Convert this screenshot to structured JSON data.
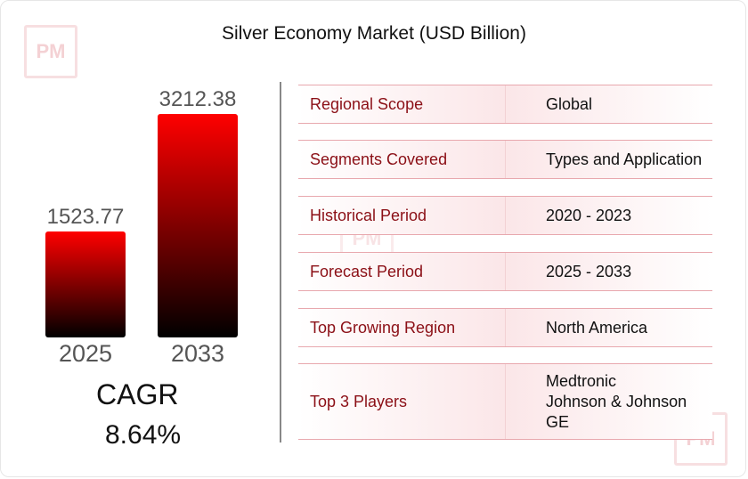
{
  "watermark": "PM",
  "chart_data": {
    "type": "bar",
    "title": "Silver Economy Market (USD Billion)",
    "categories": [
      "2025",
      "2033"
    ],
    "values": [
      1523.77,
      3212.38
    ],
    "value_labels": [
      "1523.77",
      "3212.38"
    ],
    "ylim": [
      0,
      3212.38
    ],
    "colors": {
      "top": "#ff0000",
      "bottom": "#000000"
    }
  },
  "cagr": {
    "label": "CAGR",
    "value": "8.64%"
  },
  "table": {
    "rows": [
      {
        "label": "Regional Scope",
        "value": [
          "Global"
        ]
      },
      {
        "label": "Segments Covered",
        "value": [
          "Types and Application"
        ]
      },
      {
        "label": "Historical Period",
        "value": [
          "2020 - 2023"
        ]
      },
      {
        "label": "Forecast Period",
        "value": [
          "2025 - 2033"
        ]
      },
      {
        "label": "Top Growing Region",
        "value": [
          "North America"
        ]
      },
      {
        "label": "Top 3 Players",
        "value": [
          "Medtronic",
          "Johnson & Johnson",
          "GE"
        ]
      }
    ]
  }
}
